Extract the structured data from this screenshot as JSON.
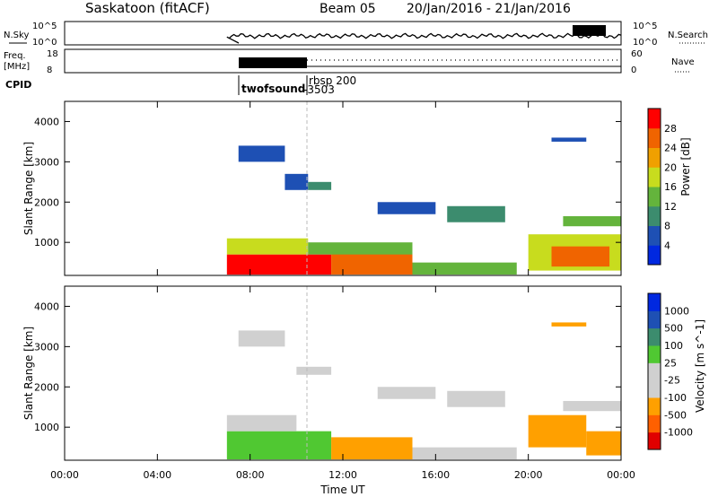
{
  "header": {
    "station": "Saskatoon (fitACF)",
    "beam": "Beam 05",
    "date_range": "20/Jan/2016 - 21/Jan/2016"
  },
  "status_panels": {
    "nsky_label": "N.Sky",
    "nsky_ticks": [
      "10^5",
      "10^0"
    ],
    "nsearch_label": "N.Search",
    "nsearch_ticks": [
      "10^5",
      "10^0"
    ],
    "freq_label_1": "Freq.",
    "freq_label_2": "[MHz]",
    "freq_ticks": [
      "18",
      "8"
    ],
    "nave_label": "Nave",
    "nave_ticks": [
      "60",
      "0"
    ],
    "cpid_label": "CPID",
    "cpid_entries": [
      "twofsound",
      "-3503",
      "rbsp 200"
    ]
  },
  "colors": {
    "power": [
      "#0028e0",
      "#1e50b4",
      "#3c8c6e",
      "#64b43c",
      "#c8dc1e",
      "#f0a000",
      "#f06400",
      "#ff0000"
    ],
    "velocity": [
      "#e00000",
      "#ff6000",
      "#ffa000",
      "#d0d0d0",
      "#d0d0d0",
      "#50c832",
      "#3c8c6e",
      "#1e50b4",
      "#0028e0"
    ]
  },
  "chart_data": [
    {
      "type": "heatmap",
      "panel": "power",
      "ylabel": "Slant Range [km]",
      "yticks": [
        "1000",
        "2000",
        "3000",
        "4000"
      ],
      "ylim": [
        180,
        4500
      ],
      "colorbar_label": "Power [dB]",
      "colorbar_ticks": [
        "4",
        "8",
        "12",
        "16",
        "20",
        "24",
        "28"
      ],
      "colorbar_range": [
        0,
        32
      ],
      "xlim_hours": [
        0,
        24
      ],
      "regions": [
        {
          "t": [
            7.0,
            11.5
          ],
          "r": [
            200,
            700
          ],
          "level": 7
        },
        {
          "t": [
            11.5,
            15.0
          ],
          "r": [
            200,
            750
          ],
          "level": 6
        },
        {
          "t": [
            7.0,
            10.5
          ],
          "r": [
            700,
            1100
          ],
          "level": 4
        },
        {
          "t": [
            10.5,
            15.0
          ],
          "r": [
            700,
            1000
          ],
          "level": 3
        },
        {
          "t": [
            15.0,
            19.5
          ],
          "r": [
            200,
            500
          ],
          "level": 3
        },
        {
          "t": [
            20.0,
            24.0
          ],
          "r": [
            300,
            1200
          ],
          "level": 4
        },
        {
          "t": [
            21.0,
            23.5
          ],
          "r": [
            400,
            900
          ],
          "level": 6
        },
        {
          "t": [
            21.5,
            24.0
          ],
          "r": [
            1400,
            1650
          ],
          "level": 3
        },
        {
          "t": [
            16.5,
            19.0
          ],
          "r": [
            1500,
            1900
          ],
          "level": 2
        },
        {
          "t": [
            13.5,
            16.0
          ],
          "r": [
            1700,
            2000
          ],
          "level": 1
        },
        {
          "t": [
            7.5,
            9.5
          ],
          "r": [
            3000,
            3400
          ],
          "level": 1
        },
        {
          "t": [
            9.5,
            10.5
          ],
          "r": [
            2300,
            2700
          ],
          "level": 1
        },
        {
          "t": [
            10.5,
            11.5
          ],
          "r": [
            2300,
            2500
          ],
          "level": 2
        },
        {
          "t": [
            21.0,
            22.5
          ],
          "r": [
            3500,
            3600
          ],
          "level": 1
        }
      ]
    },
    {
      "type": "heatmap",
      "panel": "velocity",
      "ylabel": "Slant Range [km]",
      "yticks": [
        "1000",
        "2000",
        "3000",
        "4000"
      ],
      "ylim": [
        180,
        4500
      ],
      "colorbar_label": "Velocity [m s^-1]",
      "colorbar_ticks": [
        "-1000",
        "-500",
        "-100",
        "-25",
        "25",
        "100",
        "500",
        "1000"
      ],
      "xlim_hours": [
        0,
        24
      ],
      "xticks": [
        "00:00",
        "04:00",
        "08:00",
        "12:00",
        "16:00",
        "20:00",
        "00:00"
      ],
      "xlabel": "Time UT",
      "regions": [
        {
          "t": [
            7.0,
            11.5
          ],
          "r": [
            200,
            900
          ],
          "level": 5
        },
        {
          "t": [
            11.5,
            15.0
          ],
          "r": [
            200,
            750
          ],
          "level": 2
        },
        {
          "t": [
            7.0,
            10.0
          ],
          "r": [
            900,
            1300
          ],
          "level": 4
        },
        {
          "t": [
            15.0,
            19.5
          ],
          "r": [
            200,
            500
          ],
          "level": 3
        },
        {
          "t": [
            20.0,
            22.5
          ],
          "r": [
            500,
            1300
          ],
          "level": 2
        },
        {
          "t": [
            22.5,
            24.0
          ],
          "r": [
            300,
            900
          ],
          "level": 2
        },
        {
          "t": [
            21.5,
            24.0
          ],
          "r": [
            1400,
            1650
          ],
          "level": 3
        },
        {
          "t": [
            16.5,
            19.0
          ],
          "r": [
            1500,
            1900
          ],
          "level": 3
        },
        {
          "t": [
            13.5,
            16.0
          ],
          "r": [
            1700,
            2000
          ],
          "level": 3
        },
        {
          "t": [
            7.5,
            9.5
          ],
          "r": [
            3000,
            3400
          ],
          "level": 3
        },
        {
          "t": [
            10.0,
            11.5
          ],
          "r": [
            2300,
            2500
          ],
          "level": 3
        },
        {
          "t": [
            21.0,
            22.5
          ],
          "r": [
            3500,
            3600
          ],
          "level": 2
        }
      ]
    }
  ]
}
